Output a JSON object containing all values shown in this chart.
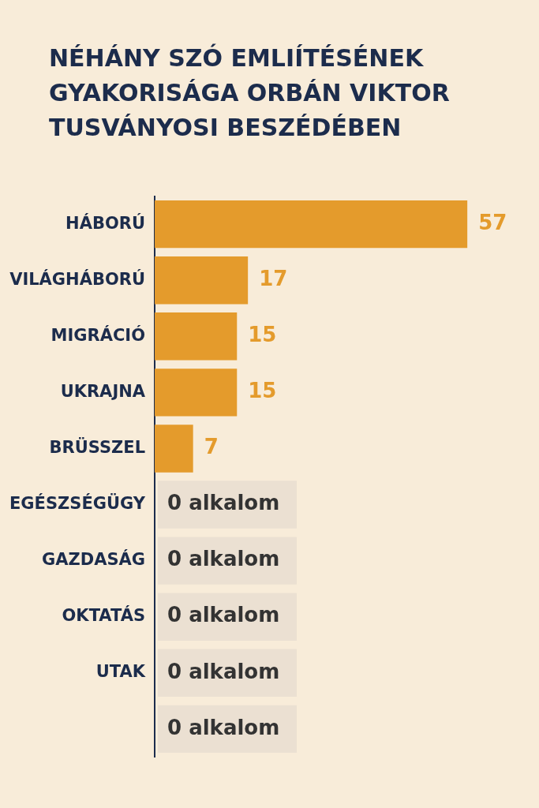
{
  "chart_data": {
    "type": "bar",
    "orientation": "horizontal",
    "title": "NÉHÁNY SZÓ EMLIÍTÉSÉNEK GYAKORISÁGA ORBÁN VIKTOR TUSVÁNYOSI BESZÉDÉBEN",
    "categories": [
      "HÁBORÚ",
      "VILÁGHÁBORÚ",
      "MIGRÁCIÓ",
      "UKRAJNA",
      "BRÜSSZEL",
      "EGÉSZSÉGÜGY",
      "GAZDASÁG",
      "OKTATÁS",
      "UTAK",
      null
    ],
    "values": [
      57,
      17,
      15,
      15,
      7,
      0,
      0,
      0,
      0,
      0
    ],
    "value_labels": [
      "57",
      "17",
      "15",
      "15",
      "7",
      "0 alkalom",
      "0 alkalom",
      "0 alkalom",
      "0 alkalom",
      "0 alkalom"
    ],
    "color": "#e49b2c",
    "legend": false,
    "tick_labels": "y"
  }
}
